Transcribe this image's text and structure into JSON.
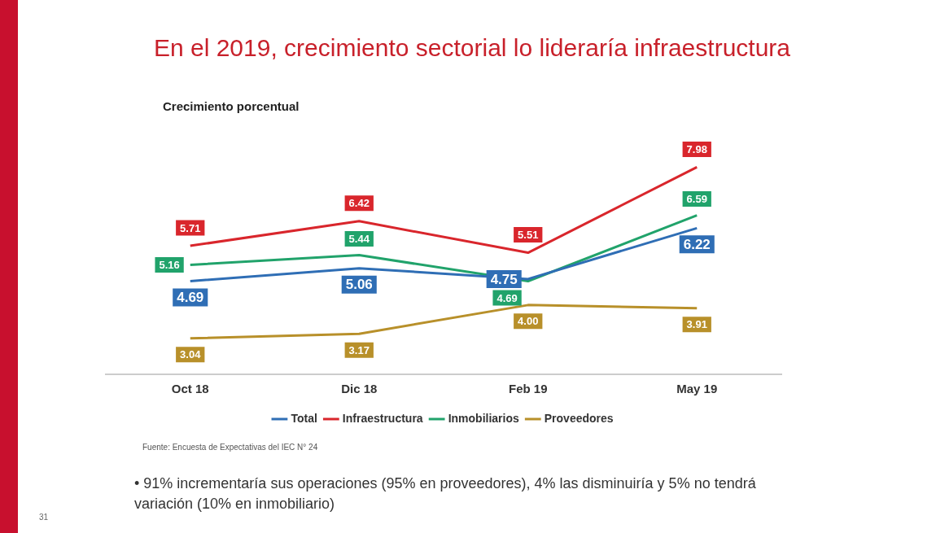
{
  "chart_data": {
    "type": "line",
    "title": "En el 2019, crecimiento sectorial lo lideraría infraestructura",
    "subtitle": "Crecimiento porcentual",
    "categories": [
      "Oct 18",
      "Dic 18",
      "Feb 19",
      "May 19"
    ],
    "series": [
      {
        "name": "Total",
        "color": "#2f6eb5",
        "values": [
          4.69,
          5.06,
          4.75,
          6.22
        ],
        "value_labels": [
          "4.69",
          "5.06",
          "4.75",
          "6.22"
        ]
      },
      {
        "name": "Infraestructura",
        "color": "#d9262c",
        "values": [
          5.71,
          6.42,
          5.51,
          7.98
        ],
        "value_labels": [
          "5.71",
          "6.42",
          "5.51",
          "7.98"
        ]
      },
      {
        "name": "Inmobiliarios",
        "color": "#21a36b",
        "values": [
          5.16,
          5.44,
          4.69,
          6.59
        ],
        "value_labels": [
          "5.16",
          "5.44",
          "4.69",
          "6.59"
        ]
      },
      {
        "name": "Proveedores",
        "color": "#b8902a",
        "values": [
          3.04,
          3.17,
          4.0,
          3.91
        ],
        "value_labels": [
          "3.04",
          "3.17",
          "4.00",
          "3.91"
        ]
      }
    ],
    "legend": "bottom",
    "grid": false,
    "line_style": "solid",
    "annotations": [
      "Fuente: Encuesta de Expectativas del IEC N° 24",
      "• 91% incrementaría sus operaciones (95% en proveedores), 4% las disminuiría y 5% no tendrá variación (10% en inmobiliario)",
      "31"
    ]
  }
}
